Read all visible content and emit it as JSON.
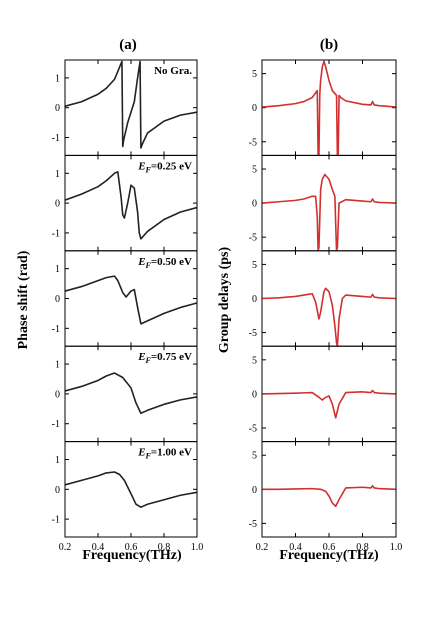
{
  "chart_data": [
    {
      "type": "line",
      "panel_label": "(a)",
      "ylabel": "Phase shift (rad)",
      "xlabel": "Frequency(THz)",
      "xlim": [
        0.2,
        1.0
      ],
      "xticks": [
        "0.2",
        "0.4",
        "0.6",
        "0.8",
        "1.0"
      ],
      "line_color": "#222222",
      "subplots": [
        {
          "annotation": {
            "prefix": "",
            "sub": "",
            "suffix": "No Gra."
          },
          "ylim": [
            -1.6,
            1.6
          ],
          "yticks": [
            -1,
            0,
            1
          ],
          "series": [
            {
              "x": [
                0.2,
                0.3,
                0.4,
                0.45,
                0.5,
                0.53,
                0.545,
                0.55,
                0.555,
                0.58,
                0.62,
                0.64,
                0.655,
                0.66,
                0.67,
                0.7,
                0.8,
                0.9,
                1.0
              ],
              "y": [
                0.05,
                0.2,
                0.45,
                0.65,
                0.95,
                1.35,
                1.55,
                -1.3,
                -1.1,
                -0.5,
                0.2,
                1.0,
                1.55,
                -1.35,
                -1.2,
                -0.85,
                -0.45,
                -0.25,
                -0.15
              ]
            }
          ]
        },
        {
          "annotation": {
            "prefix": "E",
            "sub": "F",
            "suffix": "=0.25 eV"
          },
          "ylim": [
            -1.6,
            1.6
          ],
          "yticks": [
            -1,
            0,
            1
          ],
          "series": [
            {
              "x": [
                0.2,
                0.3,
                0.4,
                0.45,
                0.5,
                0.52,
                0.54,
                0.55,
                0.56,
                0.58,
                0.6,
                0.62,
                0.64,
                0.65,
                0.66,
                0.7,
                0.8,
                0.9,
                1.0
              ],
              "y": [
                0.1,
                0.3,
                0.55,
                0.75,
                1.0,
                1.05,
                0.2,
                -0.4,
                -0.5,
                0.0,
                0.6,
                0.5,
                -0.3,
                -1.0,
                -1.2,
                -0.95,
                -0.55,
                -0.3,
                -0.15
              ]
            }
          ]
        },
        {
          "annotation": {
            "prefix": "E",
            "sub": "F",
            "suffix": "=0.50 eV"
          },
          "ylim": [
            -1.6,
            1.6
          ],
          "yticks": [
            -1,
            0,
            1
          ],
          "series": [
            {
              "x": [
                0.2,
                0.3,
                0.4,
                0.45,
                0.5,
                0.52,
                0.55,
                0.57,
                0.6,
                0.62,
                0.64,
                0.66,
                0.7,
                0.8,
                0.9,
                1.0
              ],
              "y": [
                0.25,
                0.4,
                0.6,
                0.7,
                0.75,
                0.6,
                0.2,
                0.05,
                0.25,
                0.3,
                -0.3,
                -0.85,
                -0.75,
                -0.5,
                -0.3,
                -0.15
              ]
            }
          ]
        },
        {
          "annotation": {
            "prefix": "E",
            "sub": "F",
            "suffix": "=0.75 eV"
          },
          "ylim": [
            -1.6,
            1.6
          ],
          "yticks": [
            -1,
            0,
            1
          ],
          "series": [
            {
              "x": [
                0.2,
                0.3,
                0.4,
                0.45,
                0.5,
                0.55,
                0.6,
                0.63,
                0.66,
                0.7,
                0.8,
                0.9,
                1.0
              ],
              "y": [
                0.1,
                0.25,
                0.45,
                0.6,
                0.7,
                0.55,
                0.2,
                -0.3,
                -0.65,
                -0.55,
                -0.35,
                -0.2,
                -0.1
              ]
            }
          ]
        },
        {
          "annotation": {
            "prefix": "E",
            "sub": "F",
            "suffix": "=1.00 eV"
          },
          "ylim": [
            -1.6,
            1.6
          ],
          "yticks": [
            -1,
            0,
            1
          ],
          "series": [
            {
              "x": [
                0.2,
                0.3,
                0.4,
                0.45,
                0.5,
                0.53,
                0.56,
                0.6,
                0.63,
                0.66,
                0.7,
                0.8,
                0.9,
                1.0
              ],
              "y": [
                0.15,
                0.3,
                0.45,
                0.55,
                0.58,
                0.5,
                0.3,
                -0.15,
                -0.5,
                -0.6,
                -0.5,
                -0.35,
                -0.2,
                -0.1
              ]
            }
          ]
        }
      ]
    },
    {
      "type": "line",
      "panel_label": "(b)",
      "ylabel": "Group delays (ps)",
      "xlabel": "Frequency(THz)",
      "xlim": [
        0.2,
        1.0
      ],
      "xticks": [
        "0.2",
        "0.4",
        "0.6",
        "0.8",
        "1.0"
      ],
      "line_color": "#d32f2f",
      "subplots": [
        {
          "annotation": {
            "prefix": "",
            "sub": "",
            "suffix": ""
          },
          "ylim": [
            -7,
            7
          ],
          "yticks": [
            -5,
            0,
            5
          ],
          "series": [
            {
              "x": [
                0.2,
                0.3,
                0.4,
                0.45,
                0.5,
                0.53,
                0.535,
                0.54,
                0.545,
                0.55,
                0.56,
                0.57,
                0.58,
                0.6,
                0.62,
                0.645,
                0.65,
                0.655,
                0.66,
                0.67,
                0.7,
                0.8,
                0.85,
                0.86,
                0.87,
                0.9,
                0.95,
                1.0
              ],
              "y": [
                0.1,
                0.3,
                0.6,
                0.9,
                1.5,
                2.5,
                -7,
                -7,
                2.0,
                4.0,
                6.0,
                6.8,
                6.0,
                4.0,
                2.5,
                1.8,
                -7,
                -7,
                1.8,
                1.5,
                1.0,
                0.5,
                0.4,
                0.9,
                0.4,
                0.3,
                0.2,
                0.1
              ]
            }
          ]
        },
        {
          "annotation": {
            "prefix": "",
            "sub": "",
            "suffix": ""
          },
          "ylim": [
            -7,
            7
          ],
          "yticks": [
            -5,
            0,
            5
          ],
          "series": [
            {
              "x": [
                0.2,
                0.3,
                0.4,
                0.45,
                0.5,
                0.52,
                0.53,
                0.535,
                0.54,
                0.55,
                0.56,
                0.575,
                0.6,
                0.62,
                0.635,
                0.64,
                0.645,
                0.65,
                0.66,
                0.7,
                0.8,
                0.85,
                0.86,
                0.87,
                0.9,
                1.0
              ],
              "y": [
                0.0,
                0.2,
                0.4,
                0.6,
                1.0,
                1.0,
                -2.0,
                -7,
                -6.5,
                2.0,
                3.5,
                4.2,
                3.5,
                2.0,
                1.0,
                -3.0,
                -7,
                -6.5,
                0.0,
                0.5,
                0.3,
                0.2,
                0.6,
                0.2,
                0.1,
                0.0
              ]
            }
          ]
        },
        {
          "annotation": {
            "prefix": "",
            "sub": "",
            "suffix": ""
          },
          "ylim": [
            -7,
            7
          ],
          "yticks": [
            -5,
            0,
            5
          ],
          "series": [
            {
              "x": [
                0.2,
                0.3,
                0.4,
                0.45,
                0.5,
                0.52,
                0.54,
                0.55,
                0.57,
                0.58,
                0.6,
                0.62,
                0.635,
                0.645,
                0.65,
                0.66,
                0.68,
                0.7,
                0.8,
                0.85,
                0.86,
                0.87,
                0.9,
                1.0
              ],
              "y": [
                0.0,
                0.1,
                0.3,
                0.5,
                0.7,
                -0.5,
                -3.0,
                -2.0,
                1.0,
                1.5,
                1.0,
                -1.0,
                -4.0,
                -6.5,
                -7,
                -3.0,
                0.0,
                0.5,
                0.3,
                0.2,
                0.6,
                0.2,
                0.1,
                0.0
              ]
            }
          ]
        },
        {
          "annotation": {
            "prefix": "",
            "sub": "",
            "suffix": ""
          },
          "ylim": [
            -7,
            7
          ],
          "yticks": [
            -5,
            0,
            5
          ],
          "series": [
            {
              "x": [
                0.2,
                0.3,
                0.4,
                0.45,
                0.5,
                0.54,
                0.56,
                0.58,
                0.6,
                0.62,
                0.64,
                0.66,
                0.7,
                0.8,
                0.85,
                0.86,
                0.87,
                0.9,
                1.0
              ],
              "y": [
                0.0,
                0.05,
                0.1,
                0.15,
                0.2,
                -0.5,
                -0.9,
                -0.5,
                -0.3,
                -1.5,
                -3.5,
                -1.5,
                0.2,
                0.3,
                0.2,
                0.5,
                0.2,
                0.1,
                0.0
              ]
            }
          ]
        },
        {
          "annotation": {
            "prefix": "",
            "sub": "",
            "suffix": ""
          },
          "ylim": [
            -7,
            7
          ],
          "yticks": [
            -5,
            0,
            5
          ],
          "series": [
            {
              "x": [
                0.2,
                0.3,
                0.4,
                0.5,
                0.55,
                0.58,
                0.6,
                0.62,
                0.64,
                0.66,
                0.7,
                0.8,
                0.85,
                0.86,
                0.87,
                0.9,
                1.0
              ],
              "y": [
                0.0,
                0.0,
                0.05,
                0.1,
                0.0,
                -0.3,
                -1.0,
                -2.0,
                -2.5,
                -1.5,
                0.2,
                0.3,
                0.2,
                0.5,
                0.2,
                0.1,
                0.0
              ]
            }
          ]
        }
      ]
    }
  ]
}
